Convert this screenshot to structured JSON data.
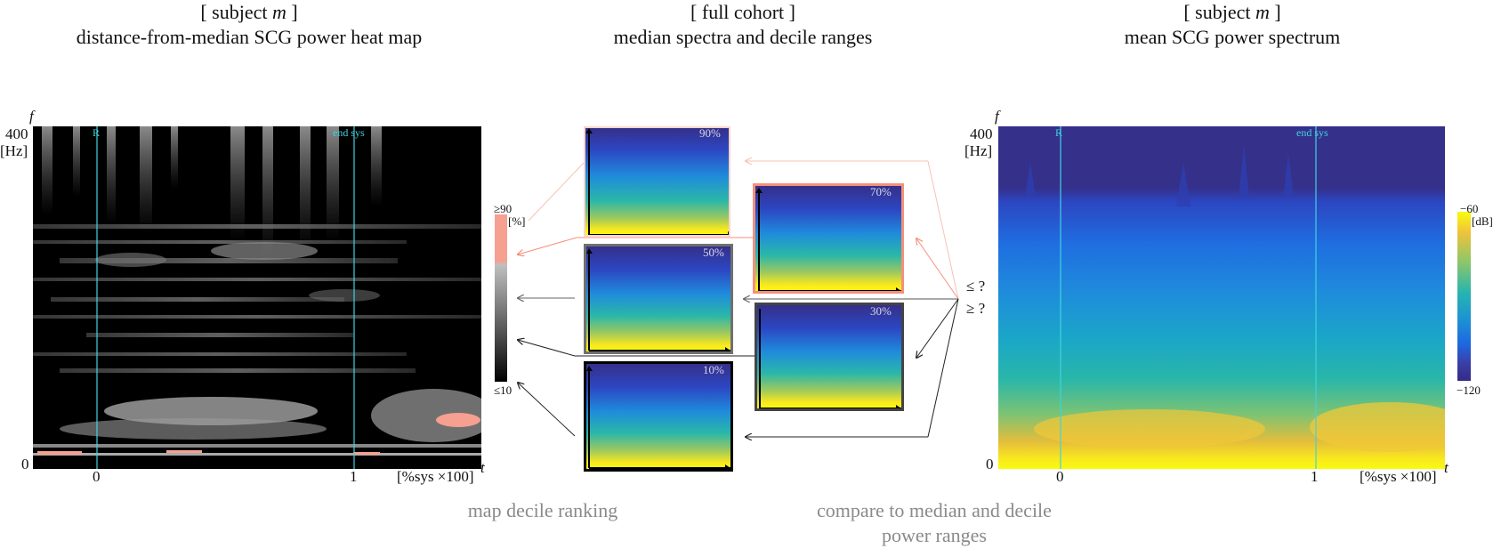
{
  "titles": {
    "left": {
      "line1_pre": "[ subject ",
      "line1_var": "m",
      "line1_post": " ]",
      "line2": "distance-from-median  SCG power heat map"
    },
    "center": {
      "line1": "[ full cohort ]",
      "line2": "median spectra and decile ranges"
    },
    "right": {
      "line1_pre": "[ subject ",
      "line1_var": "m",
      "line1_post": " ]",
      "line2": "mean SCG power spectrum"
    }
  },
  "axes": {
    "f_label": "f",
    "f_max": "400",
    "f_unit": "[Hz]",
    "f_min": "0",
    "t_label": "t",
    "t_unit": "[%sys ×100]",
    "t0": "0",
    "t1": "1"
  },
  "markers": {
    "r": "R",
    "end_sys": "end sys"
  },
  "left_colorbar": {
    "top": "≥90",
    "unit": "[%]",
    "bottom": "≤10"
  },
  "right_colorbar": {
    "top": "−60",
    "unit": "[dB]",
    "bottom": "−120"
  },
  "deciles": [
    "90%",
    "70%",
    "50%",
    "30%",
    "10%"
  ],
  "compare": {
    "le": "≤ ?",
    "ge": "≥ ?"
  },
  "captions": {
    "left": "map decile ranking",
    "right_line1": "compare to median and decile",
    "right_line2": "power ranges"
  },
  "colors": {
    "salmon": "#f5907c",
    "cyan": "#3fd3e0",
    "parula_dark": "#352a87",
    "parula_yellow": "#f9fb0e"
  }
}
